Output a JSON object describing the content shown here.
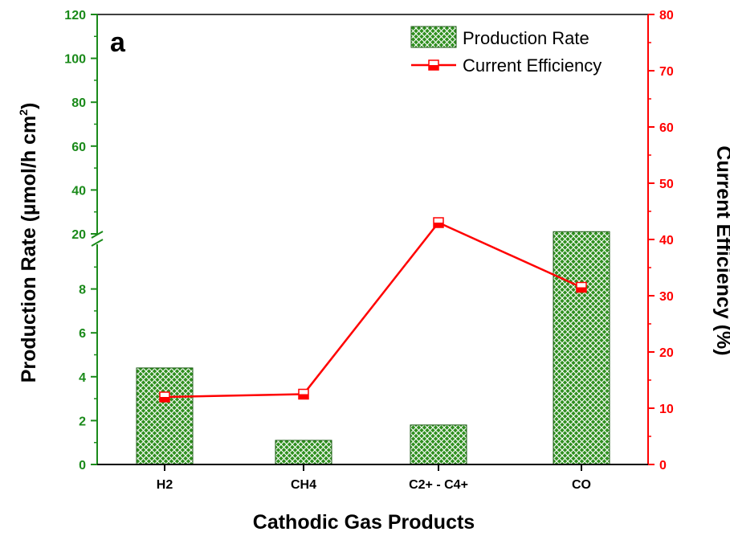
{
  "chart_data": {
    "type": "bar",
    "panel_label": "a",
    "categories": [
      "H2",
      "CH4",
      "C2+ - C4+",
      "CO"
    ],
    "xlabel": "Cathodic Gas Products",
    "ylabel_left": "Production Rate (µmol/h cm",
    "ylabel_left_sup": "2",
    "ylabel_left_close": ")",
    "ylabel_right": "Current Efficiency (%)",
    "left_axis": {
      "broken": true,
      "lower_ticks": [
        "0",
        "2",
        "4",
        "6",
        "8"
      ],
      "upper_ticks": [
        "20",
        "40",
        "60",
        "80",
        "100",
        "120"
      ],
      "lower_range": [
        0,
        10
      ],
      "upper_range": [
        20,
        120
      ],
      "color": "#1a8a1a"
    },
    "right_axis": {
      "range": [
        0,
        80
      ],
      "ticks": [
        "0",
        "10",
        "20",
        "30",
        "40",
        "50",
        "60",
        "70",
        "80"
      ],
      "color": "#ff0000"
    },
    "series": [
      {
        "name": "Production Rate",
        "type": "bar",
        "axis": "left",
        "values": [
          4.4,
          1.1,
          1.8,
          21
        ],
        "color": "#2e8b1e"
      },
      {
        "name": "Current Efficiency",
        "type": "line",
        "axis": "right",
        "values": [
          12,
          12.5,
          43,
          31.5
        ],
        "color": "#ff0000"
      }
    ],
    "legend_position": "top-right"
  }
}
